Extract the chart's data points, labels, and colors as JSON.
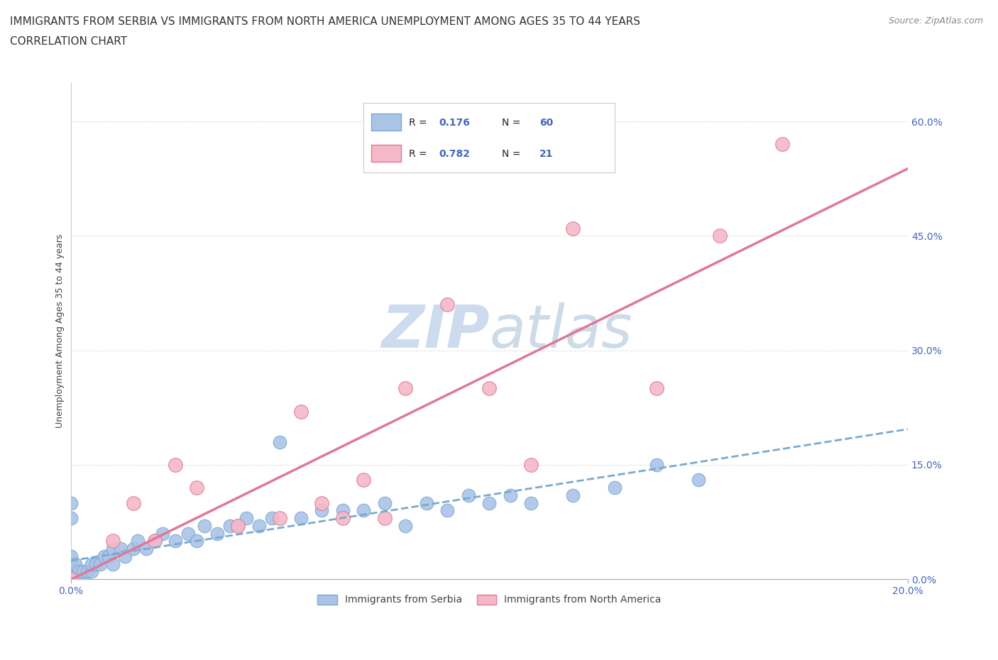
{
  "title_line1": "IMMIGRANTS FROM SERBIA VS IMMIGRANTS FROM NORTH AMERICA UNEMPLOYMENT AMONG AGES 35 TO 44 YEARS",
  "title_line2": "CORRELATION CHART",
  "source_text": "Source: ZipAtlas.com",
  "ylabel": "Unemployment Among Ages 35 to 44 years",
  "xmin": 0.0,
  "xmax": 0.2,
  "ymin": 0.0,
  "ymax": 0.65,
  "serbia_color": "#aac4e8",
  "serbia_edge_color": "#7aaad0",
  "na_color": "#f5b8c8",
  "na_edge_color": "#e07898",
  "serbia_line_color": "#7aaad0",
  "na_line_color": "#e07898",
  "watermark_color": "#ccdcee",
  "legend_label_serbia": "Immigrants from Serbia",
  "legend_label_na": "Immigrants from North America",
  "serbia_R": "0.176",
  "serbia_N": "60",
  "na_R": "0.782",
  "na_N": "21",
  "serbia_x": [
    0.0,
    0.0,
    0.0,
    0.0,
    0.0,
    0.0,
    0.0,
    0.0,
    0.0,
    0.0,
    0.001,
    0.001,
    0.001,
    0.002,
    0.002,
    0.003,
    0.003,
    0.004,
    0.005,
    0.005,
    0.006,
    0.007,
    0.008,
    0.009,
    0.01,
    0.01,
    0.012,
    0.013,
    0.015,
    0.016,
    0.018,
    0.02,
    0.022,
    0.025,
    0.028,
    0.03,
    0.032,
    0.035,
    0.038,
    0.04,
    0.042,
    0.045,
    0.048,
    0.05,
    0.055,
    0.06,
    0.065,
    0.07,
    0.075,
    0.08,
    0.085,
    0.09,
    0.095,
    0.1,
    0.105,
    0.11,
    0.12,
    0.13,
    0.14,
    0.15
  ],
  "serbia_y": [
    0.0,
    0.0,
    0.0,
    0.0,
    0.01,
    0.01,
    0.02,
    0.03,
    0.08,
    0.1,
    0.0,
    0.01,
    0.02,
    0.0,
    0.01,
    0.0,
    0.01,
    0.01,
    0.01,
    0.02,
    0.02,
    0.02,
    0.03,
    0.03,
    0.02,
    0.04,
    0.04,
    0.03,
    0.04,
    0.05,
    0.04,
    0.05,
    0.06,
    0.05,
    0.06,
    0.05,
    0.07,
    0.06,
    0.07,
    0.07,
    0.08,
    0.07,
    0.08,
    0.18,
    0.08,
    0.09,
    0.09,
    0.09,
    0.1,
    0.07,
    0.1,
    0.09,
    0.11,
    0.1,
    0.11,
    0.1,
    0.11,
    0.12,
    0.15,
    0.13
  ],
  "na_x": [
    0.0,
    0.01,
    0.015,
    0.02,
    0.025,
    0.03,
    0.04,
    0.05,
    0.055,
    0.06,
    0.065,
    0.07,
    0.075,
    0.08,
    0.09,
    0.1,
    0.11,
    0.12,
    0.14,
    0.155,
    0.17
  ],
  "na_y": [
    0.0,
    0.05,
    0.1,
    0.05,
    0.15,
    0.12,
    0.07,
    0.08,
    0.22,
    0.1,
    0.08,
    0.13,
    0.08,
    0.25,
    0.36,
    0.25,
    0.15,
    0.46,
    0.25,
    0.45,
    0.57
  ],
  "ygrid_values": [
    0.0,
    0.15,
    0.3,
    0.45,
    0.6
  ],
  "ytick_labels": [
    "0.0%",
    "15.0%",
    "30.0%",
    "45.0%",
    "60.0%"
  ],
  "xtick_left_label": "0.0%",
  "xtick_right_label": "20.0%",
  "tick_color": "#4466bb",
  "title_fontsize": 11,
  "axis_label_fontsize": 9,
  "tick_fontsize": 10,
  "legend_fontsize": 10,
  "source_fontsize": 9,
  "background_color": "#ffffff"
}
